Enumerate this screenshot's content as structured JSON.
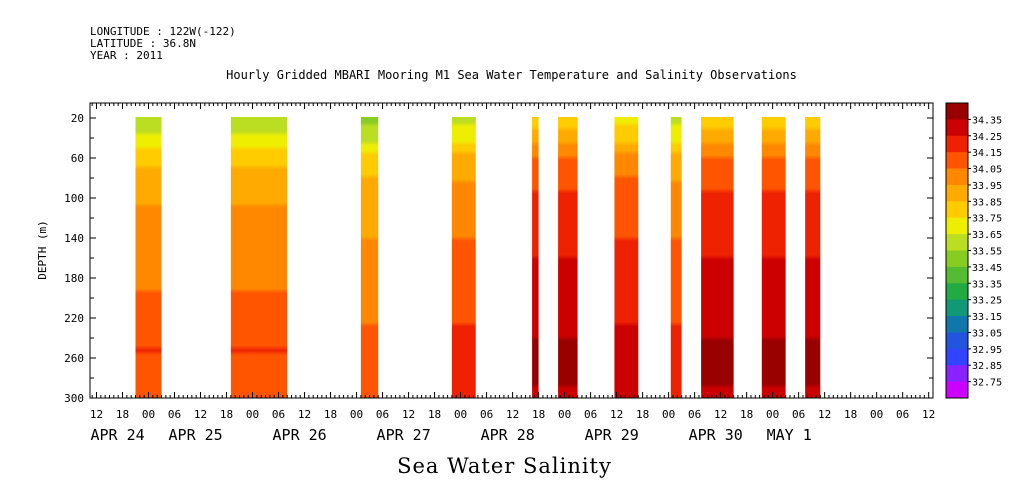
{
  "header": {
    "longitude": "LONGITUDE : 122W(-122)",
    "latitude": "LATITUDE : 36.8N",
    "year": "YEAR : 2011"
  },
  "chart_data": {
    "type": "heatmap",
    "title": "Hourly Gridded MBARI Mooring M1 Sea Water Temperature and Salinity Observations",
    "xlabel": "Sea Water Salinity",
    "ylabel": "DEPTH (m)",
    "ylim": [
      300,
      5
    ],
    "yticks": [
      20,
      60,
      100,
      140,
      180,
      220,
      260,
      300
    ],
    "x_hour_ticks": [
      {
        "h": 12,
        "label": "12"
      },
      {
        "h": 18,
        "label": "18"
      },
      {
        "h": 24,
        "label": "00"
      },
      {
        "h": 30,
        "label": "06"
      },
      {
        "h": 36,
        "label": "12"
      },
      {
        "h": 42,
        "label": "18"
      },
      {
        "h": 48,
        "label": "00"
      },
      {
        "h": 54,
        "label": "06"
      },
      {
        "h": 60,
        "label": "12"
      },
      {
        "h": 66,
        "label": "18"
      },
      {
        "h": 72,
        "label": "00"
      },
      {
        "h": 78,
        "label": "06"
      },
      {
        "h": 84,
        "label": "12"
      },
      {
        "h": 90,
        "label": "18"
      },
      {
        "h": 96,
        "label": "00"
      },
      {
        "h": 102,
        "label": "06"
      },
      {
        "h": 108,
        "label": "12"
      },
      {
        "h": 114,
        "label": "18"
      },
      {
        "h": 120,
        "label": "00"
      },
      {
        "h": 126,
        "label": "06"
      },
      {
        "h": 132,
        "label": "12"
      },
      {
        "h": 138,
        "label": "18"
      },
      {
        "h": 144,
        "label": "00"
      },
      {
        "h": 150,
        "label": "06"
      },
      {
        "h": 156,
        "label": "12"
      },
      {
        "h": 162,
        "label": "18"
      },
      {
        "h": 168,
        "label": "00"
      },
      {
        "h": 174,
        "label": "06"
      },
      {
        "h": 180,
        "label": "12"
      },
      {
        "h": 186,
        "label": "18"
      },
      {
        "h": 192,
        "label": "00"
      },
      {
        "h": 198,
        "label": "06"
      },
      {
        "h": 204,
        "label": "12"
      }
    ],
    "x_date_labels": [
      {
        "h": 12,
        "label": "APR 24"
      },
      {
        "h": 30,
        "label": "APR 25"
      },
      {
        "h": 54,
        "label": "APR 26"
      },
      {
        "h": 78,
        "label": "APR 27"
      },
      {
        "h": 102,
        "label": "APR 28"
      },
      {
        "h": 126,
        "label": "APR 29"
      },
      {
        "h": 150,
        "label": "APR 30"
      },
      {
        "h": 168,
        "label": "MAY  1"
      }
    ],
    "xlim_hours": [
      10.5,
      205
    ],
    "data_segments": [
      {
        "start": 21.0,
        "end": 27.0,
        "surface_salinity": 33.57
      },
      {
        "start": 43.0,
        "end": 56.0,
        "surface_salinity": 33.57
      },
      {
        "start": 73.0,
        "end": 77.0,
        "surface_salinity": 33.52
      },
      {
        "start": 94.0,
        "end": 99.5,
        "surface_salinity": 33.62
      },
      {
        "start": 112.5,
        "end": 114.0,
        "surface_salinity": 33.8
      },
      {
        "start": 118.5,
        "end": 123.0,
        "surface_salinity": 33.8
      },
      {
        "start": 131.5,
        "end": 137.0,
        "surface_salinity": 33.72
      },
      {
        "start": 144.5,
        "end": 147.0,
        "surface_salinity": 33.62
      },
      {
        "start": 151.5,
        "end": 159.0,
        "surface_salinity": 33.8
      },
      {
        "start": 165.5,
        "end": 171.0,
        "surface_salinity": 33.8
      },
      {
        "start": 175.5,
        "end": 179.0,
        "surface_salinity": 33.8
      }
    ],
    "depth_profile": [
      {
        "depth": 5,
        "delta": 0.0
      },
      {
        "depth": 30,
        "delta": 0.12
      },
      {
        "depth": 45,
        "delta": 0.24
      },
      {
        "depth": 70,
        "delta": 0.33
      },
      {
        "depth": 100,
        "delta": 0.38
      },
      {
        "depth": 140,
        "delta": 0.44
      },
      {
        "depth": 180,
        "delta": 0.47
      },
      {
        "depth": 220,
        "delta": 0.52
      },
      {
        "depth": 250,
        "delta": 0.58
      },
      {
        "depth": 275,
        "delta": 0.56
      },
      {
        "depth": 300,
        "delta": 0.54
      }
    ],
    "colorbar": {
      "levels": [
        32.75,
        32.85,
        32.95,
        33.05,
        33.15,
        33.25,
        33.35,
        33.45,
        33.55,
        33.65,
        33.75,
        33.85,
        33.95,
        34.05,
        34.15,
        34.25,
        34.35
      ],
      "labels": [
        "32.75",
        "32.85",
        "32.95",
        "33.05",
        "33.15",
        "33.25",
        "33.35",
        "33.45",
        "33.55",
        "33.65",
        "33.75",
        "33.85",
        "33.95",
        "34.05",
        "34.15",
        "34.25",
        "34.35"
      ],
      "colors": [
        "#cc00ff",
        "#8822ff",
        "#3344ff",
        "#2255dd",
        "#1177aa",
        "#119977",
        "#22aa44",
        "#55bb33",
        "#88cc22",
        "#bbdd22",
        "#eeee00",
        "#ffcc00",
        "#ffaa00",
        "#ff8800",
        "#ff5500",
        "#ee2200",
        "#cc0000",
        "#990000"
      ]
    }
  }
}
